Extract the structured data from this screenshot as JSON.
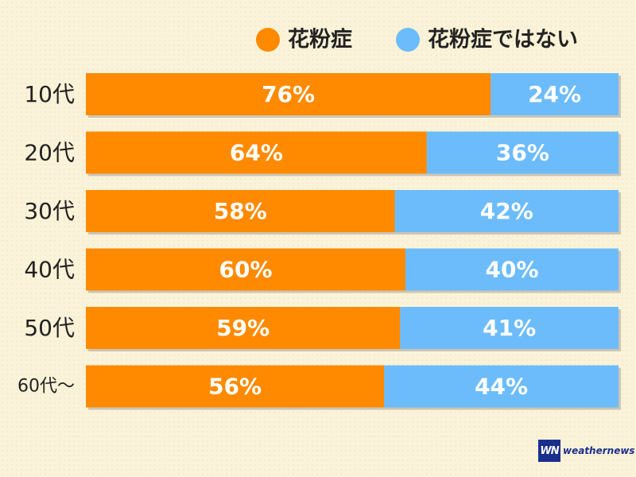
{
  "chart_data": {
    "type": "bar",
    "stacked": true,
    "orientation": "horizontal",
    "categories": [
      "10代",
      "20代",
      "30代",
      "40代",
      "50代",
      "60代〜"
    ],
    "series": [
      {
        "name": "花粉症",
        "values": [
          76,
          64,
          58,
          60,
          59,
          56
        ],
        "color": "#ff8a00"
      },
      {
        "name": "花粉症ではない",
        "values": [
          24,
          36,
          42,
          40,
          41,
          44
        ],
        "color": "#6cbcfb"
      }
    ],
    "unit": "%",
    "xlim": [
      0,
      100
    ],
    "legend_position": "top-right",
    "grid": false
  },
  "logo": {
    "mark": "WN",
    "text": "weathernews"
  },
  "colors": {
    "background": "#fbf3d9",
    "bar_shadow": "#ccc5b4",
    "label_text": "#222222",
    "data_label": "#ffffff",
    "logo": "#1a2f8c"
  }
}
